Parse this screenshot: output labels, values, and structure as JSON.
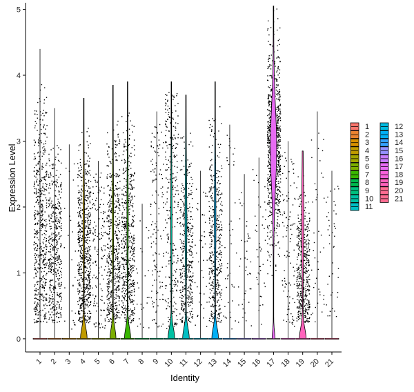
{
  "chart_data": {
    "type": "violin",
    "xlabel": "Identity",
    "ylabel": "Expression Level",
    "ylim": [
      -0.2,
      5.1
    ],
    "y_ticks": [
      0,
      1,
      2,
      3,
      4,
      5
    ],
    "x_tick_rotation": -45,
    "jitter_points": true,
    "legend_placement": "right",
    "legend_columns": 2,
    "series": [
      {
        "name": "1",
        "color": "#F8766D",
        "max": 4.4,
        "frac_expr": 0.6,
        "violin_shape": "flat"
      },
      {
        "name": "2",
        "color": "#EA8331",
        "max": 3.5,
        "frac_expr": 0.5,
        "violin_shape": "flat"
      },
      {
        "name": "3",
        "color": "#D89000",
        "max": 2.95,
        "frac_expr": 0.02,
        "violin_shape": "flat"
      },
      {
        "name": "4",
        "color": "#C09B00",
        "max": 3.65,
        "frac_expr": 0.7,
        "violin_shape": "base",
        "base_width": 0.45
      },
      {
        "name": "5",
        "color": "#A3A500",
        "max": 2.7,
        "frac_expr": 0.15,
        "violin_shape": "flat"
      },
      {
        "name": "6",
        "color": "#7CAE00",
        "max": 3.85,
        "frac_expr": 0.55,
        "violin_shape": "base",
        "base_width": 0.4
      },
      {
        "name": "7",
        "color": "#39B600",
        "max": 3.9,
        "frac_expr": 0.6,
        "violin_shape": "base",
        "base_width": 0.42
      },
      {
        "name": "8",
        "color": "#00BB4E",
        "max": 2.05,
        "frac_expr": 0.02,
        "violin_shape": "flat"
      },
      {
        "name": "9",
        "color": "#00BF7D",
        "max": 3.45,
        "frac_expr": 0.15,
        "violin_shape": "flat"
      },
      {
        "name": "10",
        "color": "#00C1A3",
        "max": 3.9,
        "frac_expr": 0.3,
        "violin_shape": "base",
        "base_width": 0.45
      },
      {
        "name": "11",
        "color": "#00BFC4",
        "max": 3.7,
        "frac_expr": 0.45,
        "violin_shape": "spindle",
        "base_width": 0.45,
        "upper_width": 0.1
      },
      {
        "name": "12",
        "color": "#00BAE0",
        "max": 2.55,
        "frac_expr": 0.04,
        "violin_shape": "flat"
      },
      {
        "name": "13",
        "color": "#00B0F6",
        "max": 3.9,
        "frac_expr": 0.45,
        "violin_shape": "spindle",
        "base_width": 0.45,
        "upper_width": 0.08
      },
      {
        "name": "14",
        "color": "#35A2FF",
        "max": 3.25,
        "frac_expr": 0.04,
        "violin_shape": "flat"
      },
      {
        "name": "15",
        "color": "#9590FF",
        "max": 2.5,
        "frac_expr": 0.04,
        "violin_shape": "flat"
      },
      {
        "name": "16",
        "color": "#C77CFF",
        "max": 2.75,
        "frac_expr": 0.04,
        "violin_shape": "flat"
      },
      {
        "name": "17",
        "color": "#E76BF3",
        "max": 5.05,
        "frac_expr": 0.95,
        "violin_shape": "full",
        "peak": 2.9,
        "peak_width": 0.42
      },
      {
        "name": "18",
        "color": "#FA62DB",
        "max": 3.0,
        "frac_expr": 0.1,
        "violin_shape": "flat"
      },
      {
        "name": "19",
        "color": "#FF62BC",
        "max": 2.85,
        "frac_expr": 0.5,
        "violin_shape": "base",
        "base_width": 0.45,
        "upper_width": 0.12
      },
      {
        "name": "20",
        "color": "#FF6C91",
        "max": 3.45,
        "frac_expr": 0.04,
        "violin_shape": "flat"
      },
      {
        "name": "21",
        "color": "#FF6C91",
        "max": 2.55,
        "frac_expr": 0.04,
        "violin_shape": "flat"
      }
    ]
  }
}
